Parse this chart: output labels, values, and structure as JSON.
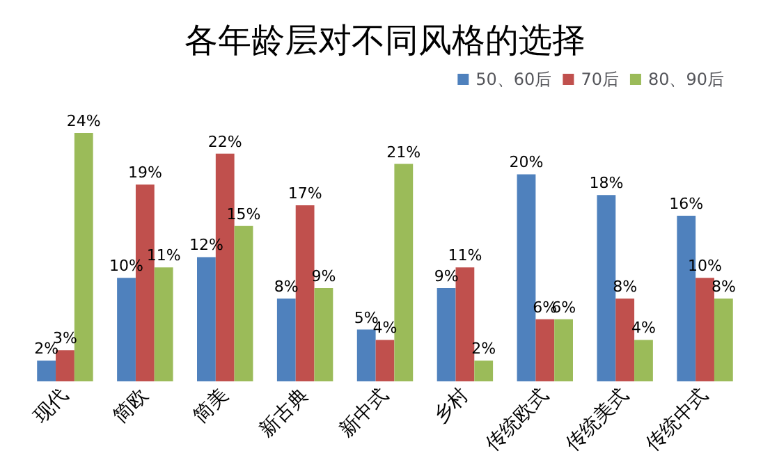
{
  "chart_data": {
    "type": "bar",
    "title": "各年龄层对不同风格的选择",
    "categories": [
      "现代",
      "简欧",
      "简美",
      "新古典",
      "新中式",
      "乡村",
      "传统欧式",
      "传统美式",
      "传统中式"
    ],
    "series": [
      {
        "name": "50、60后",
        "color": "#4f81bd",
        "values": [
          2,
          10,
          12,
          8,
          5,
          9,
          20,
          18,
          16
        ],
        "value_labels": [
          "2%",
          "10%",
          "12%",
          "8%",
          "5%",
          "9%",
          "20%",
          "18%",
          "16%"
        ]
      },
      {
        "name": "70后",
        "color": "#c0504d",
        "values": [
          3,
          19,
          22,
          17,
          4,
          11,
          6,
          8,
          10
        ],
        "value_labels": [
          "3%",
          "19%",
          "22%",
          "17%",
          "4%",
          "11%",
          "6%",
          "8%",
          "10%"
        ]
      },
      {
        "name": "80、90后",
        "color": "#9bbb59",
        "values": [
          24,
          11,
          15,
          9,
          21,
          2,
          6,
          4,
          8
        ],
        "value_labels": [
          "24%",
          "11%",
          "15%",
          "9%",
          "21%",
          "2%",
          "6%",
          "4%",
          "8%"
        ]
      }
    ],
    "legend": "top right"
  }
}
